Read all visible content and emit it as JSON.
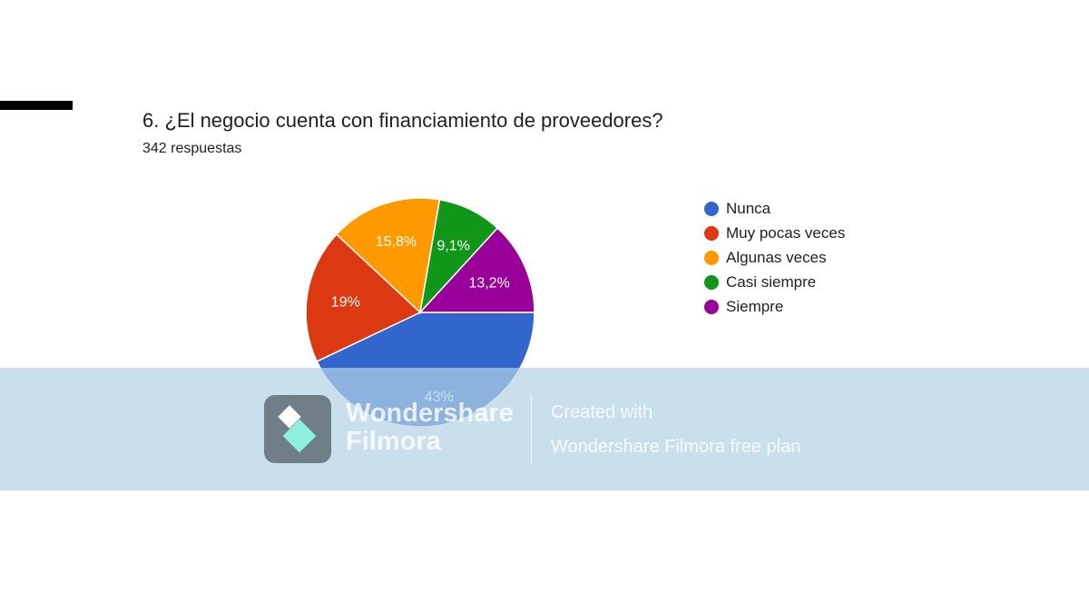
{
  "question": {
    "title": "6. ¿El negocio cuenta con financiamiento de proveedores?",
    "responses": "342 respuestas"
  },
  "chart_data": {
    "type": "pie",
    "labels": [
      "Nunca",
      "Muy pocas veces",
      "Algunas veces",
      "Casi siempre",
      "Siempre"
    ],
    "values": [
      43,
      19,
      15.8,
      9.1,
      13.2
    ],
    "data_labels": [
      "43%",
      "19%",
      "15,8%",
      "9,1%",
      "13,2%"
    ],
    "colors": [
      "#3366cc",
      "#dc3912",
      "#ff9900",
      "#109618",
      "#990099"
    ],
    "legend": "right"
  },
  "watermark": {
    "brand_line1": "Wondershare",
    "brand_line2": "Filmora",
    "created_with": "Created with",
    "plan": "Wondershare Filmora free plan",
    "logo_icon": "filmora-logo-icon"
  }
}
